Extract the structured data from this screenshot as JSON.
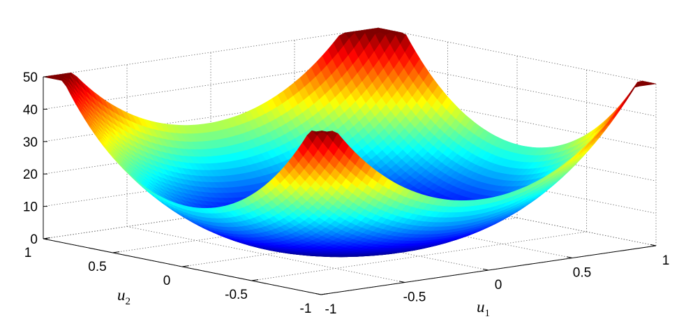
{
  "chart_data": {
    "type": "surface",
    "title": "",
    "xlabel": "u",
    "xlabel_sub": "1",
    "ylabel": "u",
    "ylabel_sub": "2",
    "zlabel": "",
    "xlim": [
      -1,
      1
    ],
    "ylim": [
      -1,
      1
    ],
    "zlim": [
      0,
      50
    ],
    "grid": true,
    "colormap": "jet",
    "x_ticks": [
      {
        "value": -1,
        "label": "-1"
      },
      {
        "value": -0.5,
        "label": "-0.5"
      },
      {
        "value": 0,
        "label": "0"
      },
      {
        "value": 0.5,
        "label": "0.5"
      },
      {
        "value": 1,
        "label": "1"
      }
    ],
    "y_ticks": [
      {
        "value": -1,
        "label": "-1"
      },
      {
        "value": -0.5,
        "label": "-0.5"
      },
      {
        "value": 0,
        "label": "0"
      },
      {
        "value": 0.5,
        "label": "0.5"
      },
      {
        "value": 1,
        "label": "1"
      }
    ],
    "z_ticks": [
      {
        "value": 0,
        "label": "0"
      },
      {
        "value": 10,
        "label": "10"
      },
      {
        "value": 20,
        "label": "20"
      },
      {
        "value": 30,
        "label": "30"
      },
      {
        "value": 40,
        "label": "40"
      },
      {
        "value": 50,
        "label": "50"
      }
    ],
    "surface": {
      "function": "max(0, 26*(u1^2+u2^2) - 4*sqrt(u1^2+u2^2) + 2*u1 + 3.2*u2 - 3*(u1^2-u2^2)) (approximate)",
      "corner_values": [
        {
          "u1": -1,
          "u2": -1,
          "z": 37
        },
        {
          "u1": 1,
          "u2": -1,
          "z": 41
        },
        {
          "u1": -1,
          "u2": 1,
          "z": 47
        },
        {
          "u1": 1,
          "u2": 1,
          "z": 49
        }
      ],
      "minimum_z": 0
    }
  },
  "colors": {
    "background": "#ffffff",
    "grid": "#666666",
    "axes": "#000000"
  }
}
